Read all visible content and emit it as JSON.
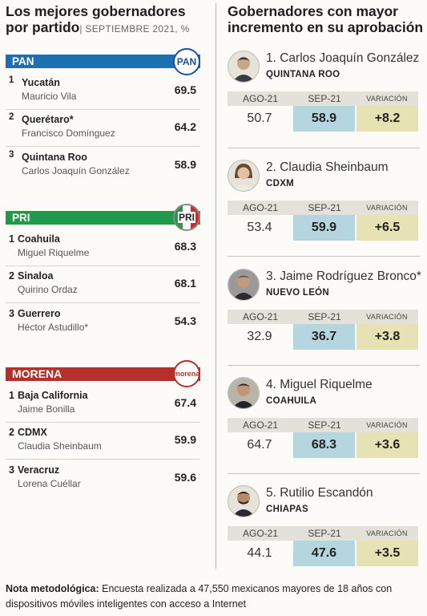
{
  "left_title": {
    "line1": "Los mejores gobernadores",
    "line2": "por partido",
    "subtitle": "SEPTIEMBRE 2021, %"
  },
  "right_title": {
    "line1": "Gobernadores con mayor",
    "line2": "incremento en su aprobación"
  },
  "colors": {
    "pan": "#1d6fb4",
    "pri": "#1f9a4a",
    "morena": "#b5302b",
    "sep_cell": "#b5d6df",
    "var_cell": "#e6e2b3"
  },
  "chart_data": [
    {
      "type": "table",
      "title": "Los mejores gobernadores por partido",
      "subtitle": "SEPTIEMBRE 2021, %",
      "parties": [
        {
          "name": "PAN",
          "logo": "PAN",
          "rows": [
            {
              "rank": "1",
              "state": "Yucatán",
              "governor": "Mauricio Vila",
              "value": "69.5"
            },
            {
              "rank": "2",
              "state": "Querétaro*",
              "governor": "Francisco Domínguez",
              "value": "64.2"
            },
            {
              "rank": "3",
              "state": "Quintana Roo",
              "governor": "Carlos Joaquín González",
              "value": "58.9"
            }
          ]
        },
        {
          "name": "PRI",
          "logo": "PRI",
          "rows": [
            {
              "rank": "1",
              "state": "Coahuila",
              "governor": "Miguel Riquelme",
              "value": "68.3"
            },
            {
              "rank": "2",
              "state": "Sinaloa",
              "governor": "Quirino Ordaz",
              "value": "68.1"
            },
            {
              "rank": "3",
              "state": "Guerrero",
              "governor": "Héctor Astudillo*",
              "value": "54.3"
            }
          ]
        },
        {
          "name": "MORENA",
          "logo": "morena",
          "rows": [
            {
              "rank": "1",
              "state": "Baja California",
              "governor": "Jaime Bonilla",
              "value": "67.4"
            },
            {
              "rank": "2",
              "state": "CDMX",
              "governor": "Claudia Sheinbaum",
              "value": "59.9"
            },
            {
              "rank": "3",
              "state": "Veracruz",
              "governor": "Lorena Cuéllar",
              "value": "59.6"
            }
          ]
        }
      ]
    },
    {
      "type": "table",
      "title": "Gobernadores con mayor incremento en su aprobación",
      "columns": [
        "AGO-21",
        "SEP-21",
        "VARIACIÓN"
      ],
      "rows": [
        {
          "name": "1. Carlos Joaquín González",
          "state": "QUINTANA ROO",
          "ago": "50.7",
          "sep": "58.9",
          "var": "+8.2"
        },
        {
          "name": "2. Claudia Sheinbaum",
          "state": "CDXM",
          "ago": "53.4",
          "sep": "59.9",
          "var": "+6.5"
        },
        {
          "name": "3. Jaime Rodríguez Bronco*",
          "state": "NUEVO LEÓN",
          "ago": "32.9",
          "sep": "36.7",
          "var": "+3.8"
        },
        {
          "name": "4. Miguel Riquelme",
          "state": "COAHUILA",
          "ago": "64.7",
          "sep": "68.3",
          "var": "+3.6"
        },
        {
          "name": "5. Rutilio Escandón",
          "state": "CHIAPAS",
          "ago": "44.1",
          "sep": "47.6",
          "var": "+3.5"
        }
      ]
    }
  ],
  "note": {
    "label": "Nota metodológica:",
    "text": " Encuesta realizada a 47,550 mexicanos mayores de 18 años con dispositivos móviles inteligentes con acceso a Internet"
  }
}
